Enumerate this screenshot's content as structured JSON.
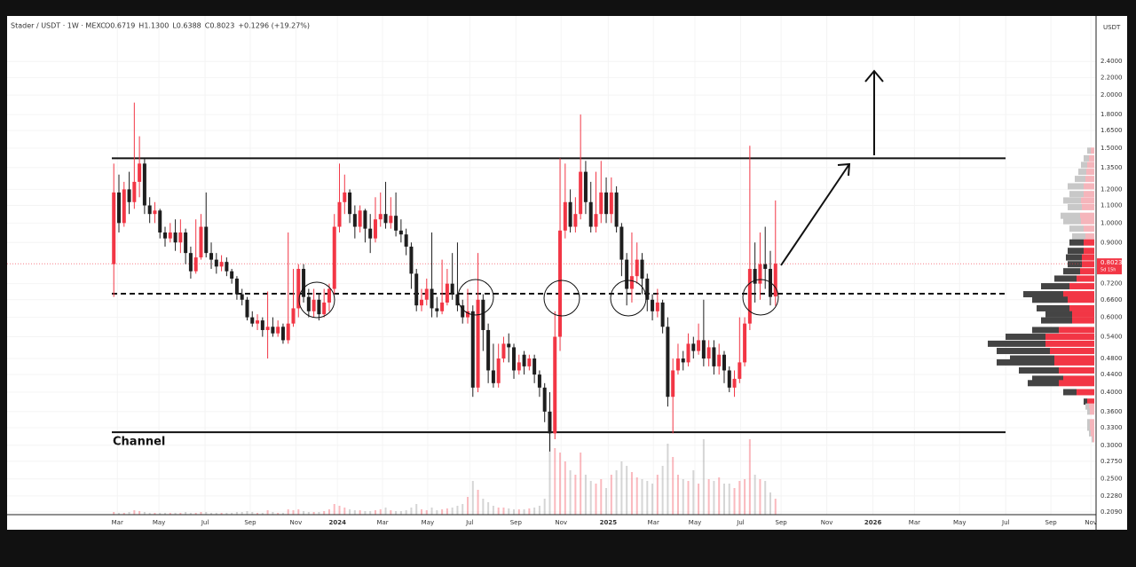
{
  "chart_data": {
    "type": "candlestick",
    "title": "Stader / USDT · 1W · MEXC",
    "legend_values": [
      "O0.6719",
      "H1.1300",
      "L0.6388",
      "C0.8023",
      "+0.1296 (+19.27%)"
    ],
    "currency": "USDT",
    "countdown": "5d 15h",
    "annotation": "Channel",
    "up_color": "#f23645",
    "down_color": "#1e1e1e",
    "grid": true,
    "log_scale": true,
    "xlim": [
      -20.8,
      191.5
    ],
    "xticks": [
      {
        "value": 0.7,
        "label": "Mar"
      },
      {
        "value": 8.8,
        "label": "May"
      },
      {
        "value": 17.8,
        "label": "Jul"
      },
      {
        "value": 26.6,
        "label": "Sep"
      },
      {
        "value": 35.5,
        "label": "Nov"
      },
      {
        "value": 43.6,
        "label": "2024"
      },
      {
        "value": 52.4,
        "label": "Mar"
      },
      {
        "value": 61.2,
        "label": "May"
      },
      {
        "value": 69.4,
        "label": "Jul"
      },
      {
        "value": 78.4,
        "label": "Sep"
      },
      {
        "value": 87.2,
        "label": "Nov"
      },
      {
        "value": 96.4,
        "label": "2025"
      },
      {
        "value": 105.2,
        "label": "Mar"
      },
      {
        "value": 113.3,
        "label": "May"
      },
      {
        "value": 122.2,
        "label": "Jul"
      },
      {
        "value": 130.1,
        "label": "Sep"
      },
      {
        "value": 139,
        "label": "Nov"
      },
      {
        "value": 148,
        "label": "2026"
      },
      {
        "value": 156.1,
        "label": "Mar"
      },
      {
        "value": 164.9,
        "label": "May"
      },
      {
        "value": 173.9,
        "label": "Jul"
      },
      {
        "value": 182.7,
        "label": "Sep"
      },
      {
        "value": 190.5,
        "label": "Nov"
      }
    ],
    "ylim": [
      0.206,
      3.07
    ],
    "yticks": [
      {
        "value": 2.4,
        "label": "2.4000"
      },
      {
        "value": 2.2,
        "label": "2.2000"
      },
      {
        "value": 2,
        "label": "2.0000"
      },
      {
        "value": 1.8,
        "label": "1.8000"
      },
      {
        "value": 1.65,
        "label": "1.6500"
      },
      {
        "value": 1.5,
        "label": "1.5000"
      },
      {
        "value": 1.35,
        "label": "1.3500"
      },
      {
        "value": 1.2,
        "label": "1.2000"
      },
      {
        "value": 1.1,
        "label": "1.1000"
      },
      {
        "value": 1,
        "label": "1.0000"
      },
      {
        "value": 0.9,
        "label": "0.9000"
      },
      {
        "value": 0.72,
        "label": "0.7200"
      },
      {
        "value": 0.66,
        "label": "0.6600"
      },
      {
        "value": 0.6,
        "label": "0.6000"
      },
      {
        "value": 0.54,
        "label": "0.5400"
      },
      {
        "value": 0.48,
        "label": "0.4800"
      },
      {
        "value": 0.44,
        "label": "0.4400"
      },
      {
        "value": 0.4,
        "label": "0.4000"
      },
      {
        "value": 0.36,
        "label": "0.3600"
      },
      {
        "value": 0.33,
        "label": "0.3300"
      },
      {
        "value": 0.3,
        "label": "0.3000"
      },
      {
        "value": 0.275,
        "label": "0.2750"
      },
      {
        "value": 0.25,
        "label": "0.2500"
      },
      {
        "value": 0.228,
        "label": "0.2280"
      },
      {
        "value": 0.209,
        "label": "0.2090"
      }
    ],
    "open": [
      0.8,
      1.18,
      1.0,
      1.2,
      1.12,
      1.25,
      1.38,
      1.1,
      1.05,
      1.07,
      0.95,
      0.92,
      0.95,
      0.9,
      0.95,
      0.85,
      0.77,
      0.83,
      0.98,
      0.85,
      0.82,
      0.79,
      0.81,
      0.77,
      0.74,
      0.68,
      0.66,
      0.6,
      0.58,
      0.59,
      0.56,
      0.57,
      0.55,
      0.57,
      0.53,
      0.58,
      0.63,
      0.78,
      0.67,
      0.62,
      0.66,
      0.61,
      0.65,
      0.7,
      0.98,
      1.12,
      1.18,
      1.05,
      0.98,
      1.07,
      0.97,
      0.92,
      1.02,
      1.05,
      1.0,
      1.04,
      0.96,
      0.94,
      0.88,
      0.76,
      0.64,
      0.66,
      0.7,
      0.63,
      0.62,
      0.65,
      0.72,
      0.68,
      0.64,
      0.6,
      0.62,
      0.41,
      0.66,
      0.56,
      0.45,
      0.42,
      0.48,
      0.52,
      0.51,
      0.45,
      0.49,
      0.46,
      0.48,
      0.44,
      0.41,
      0.36,
      0.32,
      0.54,
      0.96,
      1.12,
      0.98,
      1.05,
      1.32,
      1.12,
      0.98,
      1.05,
      1.18,
      1.05,
      1.18,
      0.98,
      0.82,
      0.7,
      0.75,
      0.82,
      0.74,
      0.66,
      0.62,
      0.65,
      0.57,
      0.39,
      0.45,
      0.48,
      0.47,
      0.52,
      0.5,
      0.53,
      0.48,
      0.51,
      0.46,
      0.49,
      0.45,
      0.41,
      0.43,
      0.47,
      0.58,
      0.78,
      0.72,
      0.8,
      0.78,
      0.6719
    ],
    "high": [
      1.38,
      1.3,
      1.25,
      1.32,
      1.92,
      1.6,
      1.42,
      1.15,
      1.12,
      1.08,
      0.98,
      1.0,
      1.02,
      1.02,
      0.97,
      0.88,
      1.02,
      1.05,
      1.18,
      0.9,
      0.85,
      0.84,
      0.83,
      0.78,
      0.75,
      0.7,
      0.67,
      0.62,
      0.61,
      0.6,
      0.69,
      0.6,
      0.59,
      0.58,
      0.95,
      0.78,
      0.8,
      0.8,
      0.7,
      0.7,
      0.68,
      0.7,
      0.72,
      1.05,
      1.38,
      1.3,
      1.2,
      1.1,
      1.1,
      1.08,
      1.05,
      1.15,
      1.18,
      1.25,
      1.15,
      1.18,
      1.02,
      0.97,
      0.9,
      0.78,
      0.7,
      0.74,
      0.95,
      0.67,
      0.82,
      0.78,
      0.85,
      0.9,
      0.66,
      0.7,
      0.64,
      0.85,
      0.68,
      0.58,
      0.52,
      0.52,
      0.54,
      0.55,
      0.52,
      0.49,
      0.5,
      0.49,
      0.49,
      0.45,
      0.42,
      0.4,
      0.62,
      1.42,
      1.38,
      1.2,
      1.15,
      1.8,
      1.4,
      1.25,
      1.32,
      1.4,
      1.28,
      1.28,
      1.22,
      1.0,
      0.85,
      0.95,
      0.9,
      0.85,
      0.76,
      0.68,
      0.7,
      0.66,
      0.6,
      0.48,
      0.52,
      0.5,
      0.55,
      0.54,
      0.58,
      0.66,
      0.53,
      0.53,
      0.52,
      0.5,
      0.46,
      0.45,
      0.6,
      0.6,
      1.52,
      0.9,
      0.95,
      0.98,
      0.86,
      1.13
    ],
    "low": [
      0.67,
      0.95,
      0.98,
      1.05,
      1.08,
      1.15,
      1.05,
      1.0,
      1.0,
      0.92,
      0.88,
      0.9,
      0.86,
      0.85,
      0.8,
      0.74,
      0.76,
      0.82,
      0.83,
      0.78,
      0.76,
      0.77,
      0.75,
      0.72,
      0.66,
      0.64,
      0.59,
      0.57,
      0.56,
      0.54,
      0.48,
      0.54,
      0.54,
      0.52,
      0.52,
      0.57,
      0.6,
      0.65,
      0.6,
      0.6,
      0.59,
      0.6,
      0.62,
      0.68,
      0.95,
      1.05,
      1.0,
      0.92,
      0.95,
      0.9,
      0.85,
      0.9,
      0.98,
      0.97,
      0.97,
      0.93,
      0.9,
      0.84,
      0.7,
      0.62,
      0.62,
      0.64,
      0.6,
      0.6,
      0.61,
      0.64,
      0.66,
      0.62,
      0.58,
      0.58,
      0.39,
      0.4,
      0.5,
      0.42,
      0.41,
      0.41,
      0.47,
      0.47,
      0.43,
      0.44,
      0.44,
      0.45,
      0.42,
      0.39,
      0.34,
      0.29,
      0.31,
      0.5,
      0.92,
      0.95,
      0.95,
      1.02,
      1.05,
      0.95,
      0.95,
      1.0,
      1.0,
      1.0,
      0.95,
      0.75,
      0.64,
      0.65,
      0.72,
      0.68,
      0.62,
      0.59,
      0.6,
      0.55,
      0.37,
      0.32,
      0.44,
      0.45,
      0.46,
      0.48,
      0.49,
      0.46,
      0.46,
      0.44,
      0.44,
      0.42,
      0.4,
      0.39,
      0.42,
      0.46,
      0.56,
      0.65,
      0.66,
      0.7,
      0.64,
      0.6388
    ],
    "close": [
      1.18,
      1.0,
      1.2,
      1.12,
      1.25,
      1.38,
      1.1,
      1.05,
      1.07,
      0.95,
      0.92,
      0.95,
      0.9,
      0.95,
      0.85,
      0.77,
      0.83,
      0.98,
      0.85,
      0.82,
      0.79,
      0.81,
      0.77,
      0.74,
      0.68,
      0.66,
      0.6,
      0.58,
      0.59,
      0.56,
      0.57,
      0.55,
      0.57,
      0.53,
      0.58,
      0.63,
      0.78,
      0.67,
      0.62,
      0.66,
      0.61,
      0.65,
      0.7,
      0.98,
      1.12,
      1.18,
      1.05,
      0.98,
      1.07,
      0.97,
      0.92,
      1.02,
      1.05,
      1.0,
      1.04,
      0.96,
      0.94,
      0.88,
      0.76,
      0.64,
      0.66,
      0.7,
      0.63,
      0.62,
      0.65,
      0.72,
      0.68,
      0.64,
      0.6,
      0.62,
      0.41,
      0.66,
      0.56,
      0.45,
      0.42,
      0.48,
      0.52,
      0.51,
      0.45,
      0.47,
      0.46,
      0.48,
      0.44,
      0.41,
      0.36,
      0.32,
      0.54,
      0.96,
      1.12,
      0.98,
      1.05,
      1.32,
      1.12,
      0.98,
      1.05,
      1.18,
      1.05,
      1.18,
      0.98,
      0.82,
      0.7,
      0.75,
      0.82,
      0.74,
      0.66,
      0.62,
      0.65,
      0.57,
      0.39,
      0.45,
      0.48,
      0.47,
      0.52,
      0.5,
      0.53,
      0.48,
      0.51,
      0.46,
      0.49,
      0.45,
      0.41,
      0.43,
      0.47,
      0.58,
      0.78,
      0.72,
      0.8,
      0.78,
      0.67,
      0.8023
    ],
    "volume": [
      3,
      2,
      2,
      3,
      5,
      4,
      3,
      2,
      2,
      2,
      2,
      2,
      2,
      2,
      3,
      2,
      2,
      3,
      3,
      2,
      2,
      2,
      2,
      2,
      3,
      3,
      4,
      3,
      2,
      2,
      5,
      3,
      2,
      2,
      6,
      5,
      6,
      4,
      3,
      3,
      3,
      4,
      6,
      12,
      10,
      8,
      6,
      5,
      5,
      4,
      4,
      5,
      6,
      8,
      5,
      4,
      4,
      5,
      8,
      12,
      6,
      5,
      8,
      5,
      6,
      7,
      8,
      10,
      12,
      20,
      38,
      28,
      18,
      14,
      10,
      8,
      8,
      7,
      6,
      6,
      6,
      7,
      8,
      10,
      18,
      110,
      75,
      70,
      60,
      50,
      45,
      70,
      45,
      38,
      35,
      40,
      30,
      45,
      50,
      60,
      55,
      48,
      42,
      40,
      38,
      35,
      45,
      55,
      80,
      65,
      45,
      40,
      38,
      50,
      35,
      85,
      40,
      38,
      42,
      35,
      35,
      30,
      38,
      40,
      85,
      45,
      40,
      38,
      25,
      18
    ],
    "volume_lim": [
      0,
      130
    ],
    "lines": [
      {
        "value": 1.42,
        "style": "solid"
      },
      {
        "value": 0.322,
        "style": "solid"
      },
      {
        "value": 0.682,
        "style": "dashed"
      }
    ],
    "volume_profile": {
      "price": [
        1.48,
        1.42,
        1.37,
        1.32,
        1.27,
        1.22,
        1.17,
        1.13,
        1.09,
        1.04,
        1.01,
        0.97,
        0.93,
        0.9,
        0.86,
        0.83,
        0.8,
        0.77,
        0.74,
        0.71,
        0.68,
        0.66,
        0.63,
        0.61,
        0.59,
        0.56,
        0.54,
        0.52,
        0.5,
        0.48,
        0.47,
        0.45,
        0.43,
        0.42,
        0.4,
        0.38,
        0.37,
        0.36,
        0.34,
        0.33,
        0.32,
        0.31
      ],
      "up": [
        4,
        6,
        8,
        9,
        10,
        12,
        12,
        15,
        14,
        16,
        15,
        12,
        10,
        12,
        12,
        14,
        14,
        16,
        20,
        28,
        35,
        30,
        28,
        25,
        25,
        40,
        55,
        55,
        50,
        45,
        45,
        40,
        35,
        40,
        20,
        8,
        6,
        5,
        5,
        5,
        4,
        2
      ],
      "down": [
        4,
        6,
        7,
        9,
        12,
        18,
        16,
        20,
        16,
        22,
        20,
        16,
        15,
        16,
        18,
        18,
        16,
        19,
        25,
        32,
        45,
        40,
        37,
        30,
        35,
        30,
        45,
        65,
        60,
        50,
        65,
        45,
        35,
        35,
        15,
        4,
        4,
        3,
        3,
        3,
        2,
        1
      ],
      "value_area": [
        0.38,
        0.9
      ],
      "lim": [
        0,
        130
      ]
    }
  }
}
